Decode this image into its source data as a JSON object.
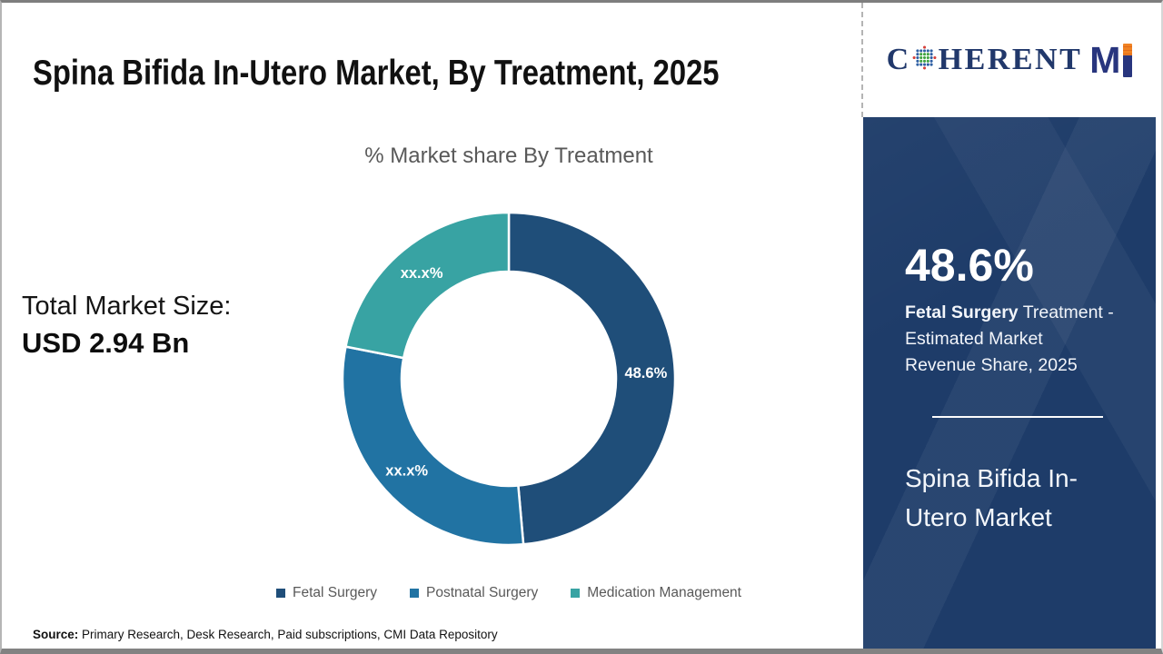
{
  "page": {
    "title": "Spina Bifida In-Utero Market, By Treatment, 2025",
    "source_label": "Source:",
    "source_text": " Primary Research, Desk Research, Paid subscriptions, CMI Data Repository"
  },
  "logo": {
    "part1": "C",
    "part2": "HERENT",
    "part3": "M",
    "globe_icon": "dotted-globe-o-icon",
    "colors": {
      "serif_navy": "#21386b",
      "mi_navy": "#28357e",
      "orange": "#f08223",
      "dot_green": "#3fa33f",
      "dot_blue": "#2e5fa3",
      "dot_red": "#d6403a"
    }
  },
  "stats": {
    "total_label": "Total Market Size:",
    "total_value": "USD 2.94 Bn"
  },
  "chart_data": {
    "type": "pie",
    "subtype": "donut",
    "title": "% Market share By Treatment",
    "start_angle_deg": 0,
    "direction": "clockwise",
    "inner_radius_ratio": 0.645,
    "legend_position": "bottom",
    "segments": [
      {
        "name": "Fetal Surgery",
        "display_label": "48.6%",
        "value_pct": 48.6,
        "masked": false,
        "color": "#1f4e79"
      },
      {
        "name": "Postnatal Surgery",
        "display_label": "xx.x%",
        "value_pct": 29.5,
        "masked": true,
        "color": "#2173a3"
      },
      {
        "name": "Medication Management",
        "display_label": "xx.x%",
        "value_pct": 21.9,
        "masked": true,
        "color": "#38a3a3"
      }
    ]
  },
  "panel": {
    "background": "#1e3c69",
    "share_value": "48.6%",
    "desc_line1_bold": "Fetal Surgery",
    "desc_line1_rest": " Treatment -",
    "desc_line2": "Estimated Market",
    "desc_line3": "Revenue Share, 2025",
    "market_name": "Spina Bifida In-Utero Market",
    "market_name_lines": [
      "Spina Bifida In-",
      "Utero Market"
    ]
  }
}
